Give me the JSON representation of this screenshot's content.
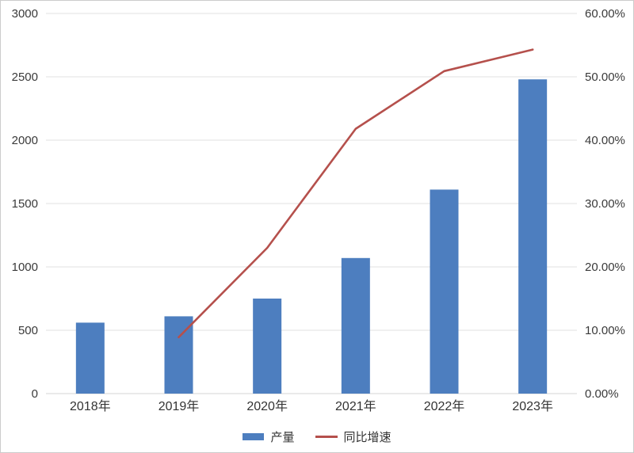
{
  "chart_data": {
    "type": "combo-bar-line",
    "title": "",
    "categories": [
      "2018年",
      "2019年",
      "2020年",
      "2021年",
      "2022年",
      "2023年"
    ],
    "series": [
      {
        "name": "产量",
        "type": "bar",
        "axis": "left",
        "color": "#4D7EBF",
        "values": [
          560,
          610,
          750,
          1070,
          1610,
          2480
        ]
      },
      {
        "name": "同比增速",
        "type": "line",
        "axis": "right",
        "color": "#B5504C",
        "values": [
          null,
          8.9,
          23.0,
          41.8,
          50.9,
          54.3
        ]
      }
    ],
    "left_axis": {
      "min": 0,
      "max": 3000,
      "step": 500,
      "tick_labels": [
        "0",
        "500",
        "1000",
        "1500",
        "2000",
        "2500",
        "3000"
      ]
    },
    "right_axis": {
      "min": 0,
      "max": 60,
      "step": 10,
      "tick_labels": [
        "0.00%",
        "10.00%",
        "20.00%",
        "30.00%",
        "40.00%",
        "50.00%",
        "60.00%"
      ]
    },
    "grid": true,
    "legend_position": "bottom"
  },
  "colors": {
    "grid": "#E0E0E0",
    "axis_line": "#D6D6D6",
    "tick_text": "#3A3A3A",
    "category_text": "#333333",
    "background": "#FFFFFF",
    "border": "#CCCCCC"
  }
}
